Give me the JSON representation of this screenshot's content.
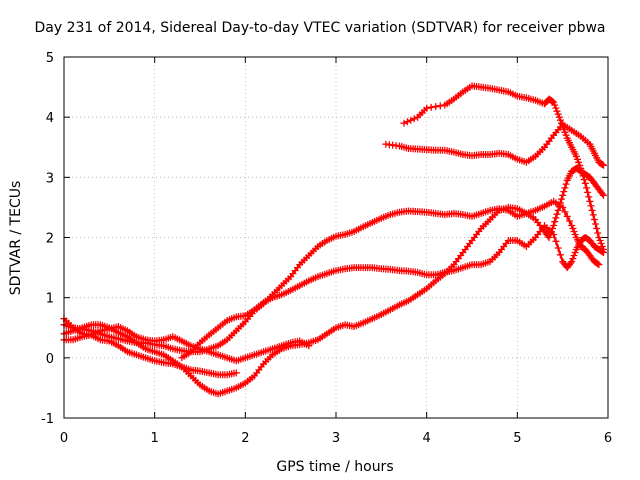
{
  "chart_data": {
    "type": "line",
    "title": "Day 231 of 2014, Sidereal Day-to-day VTEC variation (SDTVAR) for receiver pbwa",
    "xlabel": "GPS time / hours",
    "ylabel": "SDTVAR / TECUs",
    "xlim": [
      0,
      6
    ],
    "ylim": [
      -1,
      5
    ],
    "x_ticks": [
      "0",
      "1",
      "2",
      "3",
      "4",
      "5",
      "6"
    ],
    "y_ticks": [
      "-1",
      "0",
      "1",
      "2",
      "3",
      "4",
      "5"
    ],
    "grid": true,
    "marker": "cross",
    "color": "#ff0000",
    "series": [
      {
        "points": [
          [
            3.75,
            3.9
          ],
          [
            3.9,
            4.0
          ],
          [
            4.0,
            4.15
          ],
          [
            4.2,
            4.2
          ],
          [
            4.3,
            4.3
          ],
          [
            4.4,
            4.42
          ],
          [
            4.5,
            4.52
          ],
          [
            4.6,
            4.5
          ],
          [
            4.7,
            4.48
          ],
          [
            4.8,
            4.45
          ],
          [
            4.9,
            4.42
          ],
          [
            5.0,
            4.35
          ],
          [
            5.1,
            4.32
          ],
          [
            5.2,
            4.28
          ],
          [
            5.3,
            4.22
          ],
          [
            5.35,
            4.3
          ],
          [
            5.4,
            4.25
          ],
          [
            5.45,
            4.05
          ],
          [
            5.5,
            3.85
          ],
          [
            5.55,
            3.65
          ],
          [
            5.6,
            3.5
          ],
          [
            5.65,
            3.35
          ],
          [
            5.7,
            3.15
          ],
          [
            5.75,
            2.9
          ],
          [
            5.8,
            2.6
          ],
          [
            5.85,
            2.3
          ],
          [
            5.9,
            2.0
          ],
          [
            5.95,
            1.8
          ]
        ]
      },
      {
        "points": [
          [
            3.55,
            3.55
          ],
          [
            3.7,
            3.52
          ],
          [
            3.8,
            3.48
          ],
          [
            3.9,
            3.47
          ],
          [
            4.0,
            3.46
          ],
          [
            4.1,
            3.45
          ],
          [
            4.2,
            3.45
          ],
          [
            4.3,
            3.42
          ],
          [
            4.4,
            3.38
          ],
          [
            4.5,
            3.36
          ],
          [
            4.6,
            3.38
          ],
          [
            4.7,
            3.38
          ],
          [
            4.8,
            3.4
          ],
          [
            4.9,
            3.38
          ],
          [
            5.0,
            3.3
          ],
          [
            5.1,
            3.25
          ],
          [
            5.2,
            3.35
          ],
          [
            5.3,
            3.5
          ],
          [
            5.4,
            3.7
          ],
          [
            5.5,
            3.88
          ],
          [
            5.6,
            3.78
          ],
          [
            5.7,
            3.68
          ],
          [
            5.8,
            3.55
          ],
          [
            5.85,
            3.4
          ],
          [
            5.9,
            3.25
          ],
          [
            5.95,
            3.2
          ]
        ]
      },
      {
        "points": [
          [
            0.0,
            0.55
          ],
          [
            0.1,
            0.5
          ],
          [
            0.2,
            0.48
          ],
          [
            0.3,
            0.45
          ],
          [
            0.4,
            0.4
          ],
          [
            0.5,
            0.35
          ],
          [
            0.6,
            0.32
          ],
          [
            0.7,
            0.28
          ],
          [
            0.8,
            0.25
          ],
          [
            0.9,
            0.25
          ],
          [
            1.0,
            0.22
          ],
          [
            1.1,
            0.2
          ],
          [
            1.2,
            0.15
          ],
          [
            1.3,
            0.12
          ],
          [
            1.4,
            0.1
          ],
          [
            1.5,
            0.1
          ],
          [
            1.6,
            0.15
          ],
          [
            1.7,
            0.2
          ],
          [
            1.8,
            0.3
          ],
          [
            1.9,
            0.45
          ],
          [
            2.0,
            0.6
          ],
          [
            2.1,
            0.78
          ],
          [
            2.2,
            0.9
          ],
          [
            2.3,
            1.05
          ],
          [
            2.4,
            1.2
          ],
          [
            2.5,
            1.35
          ],
          [
            2.6,
            1.55
          ],
          [
            2.7,
            1.7
          ],
          [
            2.8,
            1.85
          ],
          [
            2.9,
            1.95
          ],
          [
            3.0,
            2.02
          ],
          [
            3.1,
            2.05
          ],
          [
            3.2,
            2.1
          ],
          [
            3.3,
            2.18
          ],
          [
            3.4,
            2.25
          ],
          [
            3.5,
            2.32
          ],
          [
            3.6,
            2.38
          ],
          [
            3.7,
            2.42
          ],
          [
            3.8,
            2.44
          ],
          [
            3.9,
            2.43
          ],
          [
            4.0,
            2.42
          ],
          [
            4.1,
            2.4
          ],
          [
            4.2,
            2.38
          ],
          [
            4.3,
            2.4
          ],
          [
            4.4,
            2.38
          ],
          [
            4.5,
            2.35
          ],
          [
            4.6,
            2.4
          ],
          [
            4.7,
            2.45
          ],
          [
            4.8,
            2.48
          ],
          [
            4.9,
            2.45
          ],
          [
            5.0,
            2.35
          ],
          [
            5.1,
            2.4
          ],
          [
            5.2,
            2.45
          ],
          [
            5.3,
            2.52
          ],
          [
            5.4,
            2.6
          ],
          [
            5.5,
            2.5
          ],
          [
            5.6,
            2.2
          ],
          [
            5.65,
            2.0
          ],
          [
            5.7,
            1.85
          ],
          [
            5.75,
            1.8
          ],
          [
            5.8,
            1.7
          ],
          [
            5.85,
            1.6
          ],
          [
            5.9,
            1.55
          ]
        ]
      },
      {
        "points": [
          [
            0.0,
            0.65
          ],
          [
            0.1,
            0.5
          ],
          [
            0.2,
            0.4
          ],
          [
            0.3,
            0.38
          ],
          [
            0.4,
            0.3
          ],
          [
            0.5,
            0.28
          ],
          [
            0.6,
            0.2
          ],
          [
            0.7,
            0.1
          ],
          [
            0.8,
            0.05
          ],
          [
            0.9,
            0.0
          ],
          [
            1.0,
            -0.05
          ],
          [
            1.1,
            -0.08
          ],
          [
            1.2,
            -0.1
          ],
          [
            1.3,
            -0.15
          ],
          [
            1.4,
            -0.3
          ],
          [
            1.5,
            -0.45
          ],
          [
            1.6,
            -0.55
          ],
          [
            1.7,
            -0.6
          ],
          [
            1.8,
            -0.55
          ],
          [
            1.9,
            -0.5
          ],
          [
            2.0,
            -0.42
          ],
          [
            2.1,
            -0.3
          ],
          [
            2.2,
            -0.1
          ],
          [
            2.3,
            0.05
          ],
          [
            2.4,
            0.15
          ],
          [
            2.5,
            0.2
          ],
          [
            2.6,
            0.22
          ],
          [
            2.7,
            0.25
          ],
          [
            2.8,
            0.3
          ],
          [
            2.9,
            0.4
          ],
          [
            3.0,
            0.5
          ],
          [
            3.1,
            0.55
          ],
          [
            3.2,
            0.52
          ],
          [
            3.3,
            0.58
          ],
          [
            3.4,
            0.65
          ],
          [
            3.5,
            0.72
          ],
          [
            3.6,
            0.8
          ],
          [
            3.7,
            0.88
          ],
          [
            3.8,
            0.95
          ],
          [
            3.9,
            1.05
          ],
          [
            4.0,
            1.15
          ],
          [
            4.1,
            1.28
          ],
          [
            4.2,
            1.4
          ],
          [
            4.3,
            1.55
          ],
          [
            4.4,
            1.75
          ],
          [
            4.5,
            1.95
          ],
          [
            4.6,
            2.15
          ],
          [
            4.7,
            2.3
          ],
          [
            4.8,
            2.45
          ],
          [
            4.9,
            2.5
          ],
          [
            5.0,
            2.48
          ],
          [
            5.1,
            2.4
          ],
          [
            5.2,
            2.3
          ],
          [
            5.3,
            2.1
          ],
          [
            5.35,
            2.0
          ],
          [
            5.4,
            2.2
          ],
          [
            5.45,
            2.45
          ],
          [
            5.5,
            2.7
          ],
          [
            5.55,
            2.95
          ],
          [
            5.6,
            3.1
          ],
          [
            5.65,
            3.15
          ],
          [
            5.7,
            3.1
          ],
          [
            5.75,
            3.05
          ],
          [
            5.8,
            3.0
          ],
          [
            5.85,
            2.9
          ],
          [
            5.9,
            2.8
          ],
          [
            5.95,
            2.7
          ]
        ]
      },
      {
        "points": [
          [
            0.0,
            0.3
          ],
          [
            0.1,
            0.3
          ],
          [
            0.2,
            0.35
          ],
          [
            0.3,
            0.38
          ],
          [
            0.4,
            0.45
          ],
          [
            0.5,
            0.48
          ],
          [
            0.6,
            0.52
          ],
          [
            0.7,
            0.45
          ],
          [
            0.8,
            0.35
          ],
          [
            0.9,
            0.3
          ],
          [
            1.0,
            0.28
          ],
          [
            1.1,
            0.3
          ],
          [
            1.2,
            0.35
          ],
          [
            1.3,
            0.28
          ],
          [
            1.4,
            0.2
          ],
          [
            1.5,
            0.15
          ],
          [
            1.6,
            0.1
          ],
          [
            1.7,
            0.05
          ],
          [
            1.8,
            0.0
          ],
          [
            1.9,
            -0.05
          ],
          [
            2.0,
            0.0
          ],
          [
            2.1,
            0.05
          ],
          [
            2.2,
            0.1
          ],
          [
            2.3,
            0.15
          ],
          [
            2.4,
            0.2
          ],
          [
            2.5,
            0.25
          ],
          [
            2.6,
            0.28
          ],
          [
            2.7,
            0.2
          ]
        ]
      },
      {
        "points": [
          [
            0.0,
            0.4
          ],
          [
            0.1,
            0.45
          ],
          [
            0.2,
            0.5
          ],
          [
            0.3,
            0.55
          ],
          [
            0.4,
            0.55
          ],
          [
            0.5,
            0.5
          ],
          [
            0.6,
            0.42
          ],
          [
            0.7,
            0.35
          ],
          [
            0.8,
            0.25
          ],
          [
            0.9,
            0.15
          ],
          [
            1.0,
            0.1
          ],
          [
            1.1,
            0.05
          ],
          [
            1.2,
            -0.05
          ],
          [
            1.3,
            -0.15
          ],
          [
            1.4,
            -0.2
          ],
          [
            1.5,
            -0.22
          ],
          [
            1.6,
            -0.25
          ],
          [
            1.7,
            -0.28
          ],
          [
            1.8,
            -0.28
          ],
          [
            1.9,
            -0.25
          ]
        ]
      },
      {
        "points": [
          [
            1.3,
            0.0
          ],
          [
            1.4,
            0.1
          ],
          [
            1.5,
            0.25
          ],
          [
            1.6,
            0.38
          ],
          [
            1.7,
            0.5
          ],
          [
            1.8,
            0.62
          ],
          [
            1.9,
            0.68
          ],
          [
            2.0,
            0.7
          ],
          [
            2.1,
            0.8
          ],
          [
            2.2,
            0.92
          ],
          [
            2.3,
            1.0
          ],
          [
            2.4,
            1.05
          ],
          [
            2.5,
            1.12
          ],
          [
            2.6,
            1.2
          ],
          [
            2.7,
            1.28
          ],
          [
            2.8,
            1.35
          ],
          [
            2.9,
            1.4
          ],
          [
            3.0,
            1.45
          ],
          [
            3.1,
            1.48
          ],
          [
            3.2,
            1.5
          ],
          [
            3.3,
            1.5
          ],
          [
            3.4,
            1.5
          ],
          [
            3.5,
            1.48
          ],
          [
            3.6,
            1.47
          ],
          [
            3.7,
            1.45
          ],
          [
            3.8,
            1.44
          ],
          [
            3.9,
            1.42
          ],
          [
            4.0,
            1.38
          ],
          [
            4.1,
            1.38
          ],
          [
            4.2,
            1.42
          ],
          [
            4.3,
            1.45
          ],
          [
            4.4,
            1.5
          ],
          [
            4.5,
            1.55
          ],
          [
            4.6,
            1.55
          ],
          [
            4.7,
            1.6
          ],
          [
            4.8,
            1.75
          ],
          [
            4.9,
            1.95
          ],
          [
            5.0,
            1.95
          ],
          [
            5.1,
            1.85
          ],
          [
            5.2,
            2.0
          ],
          [
            5.3,
            2.2
          ],
          [
            5.4,
            2.05
          ],
          [
            5.5,
            1.6
          ],
          [
            5.55,
            1.5
          ],
          [
            5.6,
            1.6
          ],
          [
            5.65,
            1.8
          ],
          [
            5.7,
            1.95
          ],
          [
            5.75,
            2.0
          ],
          [
            5.8,
            1.95
          ],
          [
            5.85,
            1.85
          ],
          [
            5.9,
            1.8
          ],
          [
            5.95,
            1.75
          ]
        ]
      }
    ]
  }
}
